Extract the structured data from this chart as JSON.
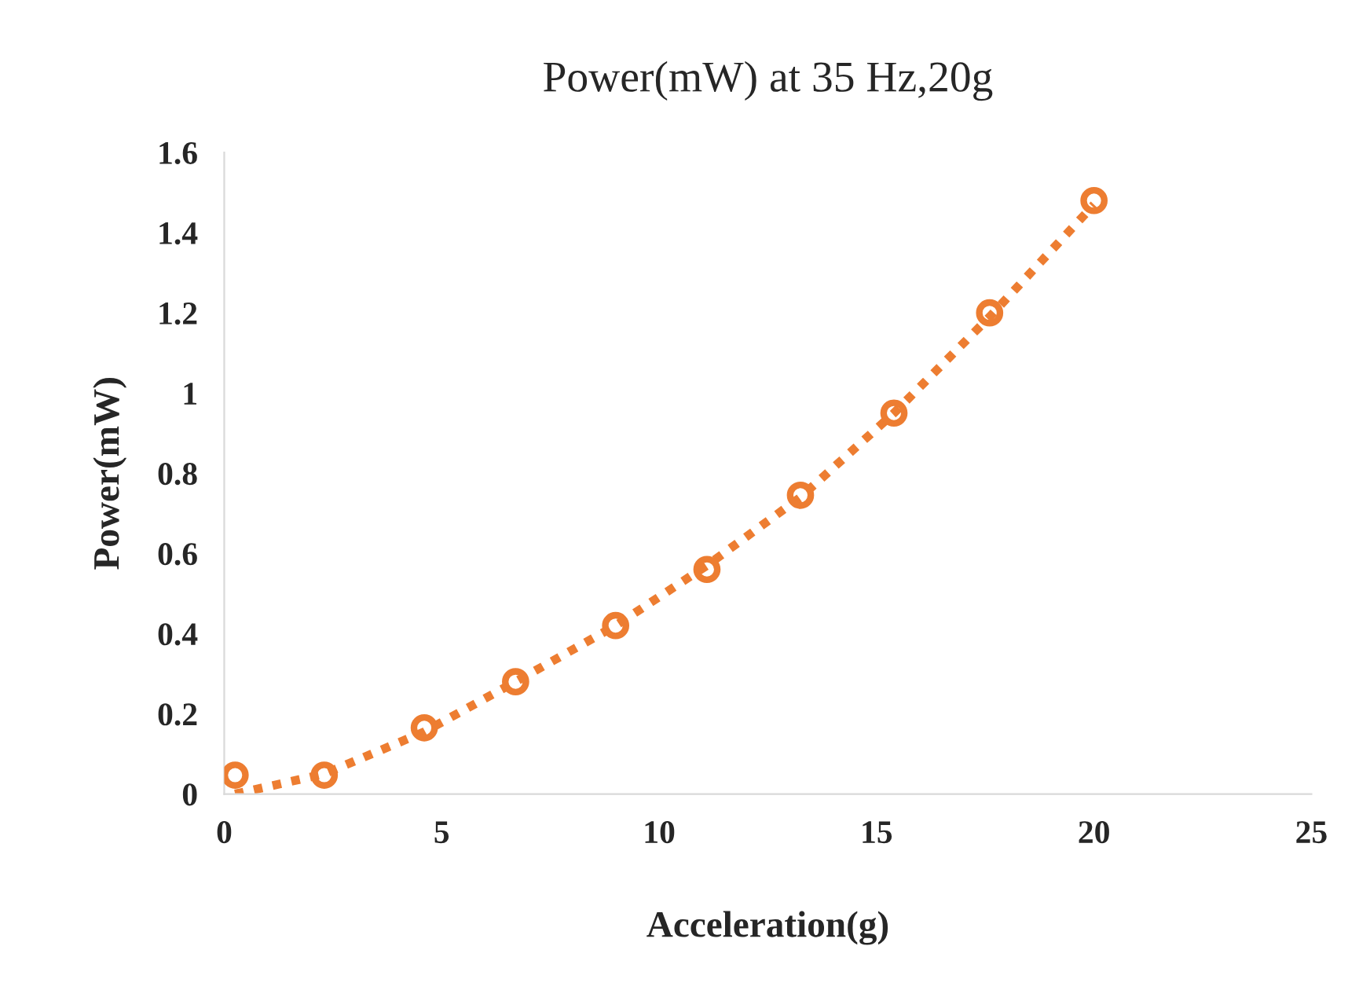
{
  "chart_data": {
    "type": "scatter",
    "title": "Power(mW) at 35 Hz,20g",
    "xlabel": "Acceleration(g)",
    "ylabel": "Power(mW)",
    "xlim": [
      0,
      25
    ],
    "xticks": [
      0,
      5,
      10,
      15,
      20,
      25
    ],
    "ylim": [
      0,
      1.6
    ],
    "yticks": [
      0,
      0.2,
      0.4,
      0.6,
      0.8,
      1,
      1.2,
      1.4,
      1.6
    ],
    "grid": false,
    "legend": false,
    "series": [
      {
        "color": "#ed7d31",
        "marker": "circle",
        "x": [
          0.25,
          2.3,
          4.6,
          6.7,
          9.0,
          11.1,
          13.25,
          15.4,
          17.6,
          20
        ],
        "values": [
          0.047,
          0.047,
          0.165,
          0.28,
          0.42,
          0.56,
          0.745,
          0.95,
          1.2,
          1.48
        ]
      },
      {
        "type": "line",
        "color": "#ed7d31",
        "marker": "none",
        "line_style": "dotted",
        "x": [
          0.25,
          2.3,
          4.6,
          6.7,
          9.0,
          11.1,
          13.25,
          15.4,
          17.6,
          20
        ],
        "values": [
          0.0,
          0.05,
          0.155,
          0.28,
          0.42,
          0.57,
          0.74,
          0.95,
          1.19,
          1.47
        ]
      }
    ]
  }
}
